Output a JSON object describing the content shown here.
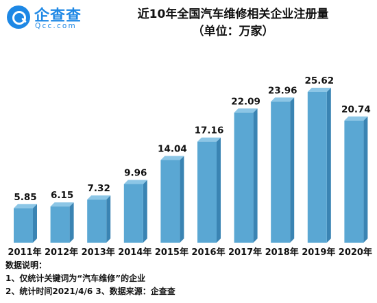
{
  "logo": {
    "name": "企查查",
    "domain": "Qcc.com"
  },
  "chart_data": {
    "type": "bar",
    "title": "近10年全国汽车维修相关企业注册量",
    "subtitle": "（单位：万家）",
    "categories": [
      "2011年",
      "2012年",
      "2013年",
      "2014年",
      "2015年",
      "2016年",
      "2017年",
      "2018年",
      "2019年",
      "2020年"
    ],
    "values": [
      5.85,
      6.15,
      7.32,
      9.96,
      14.04,
      17.16,
      22.09,
      23.96,
      25.62,
      20.74
    ],
    "data_labels": [
      "5.85",
      "6.15",
      "7.32",
      "9.96",
      "14.04",
      "17.16",
      "22.09",
      "23.96",
      "25.62",
      "20.74"
    ],
    "ylim": [
      0,
      25.62
    ],
    "grid": false,
    "colors": {
      "front": "#5aa7d3",
      "side": "#3a84b3",
      "top": "#8cc6e6"
    }
  },
  "notes": {
    "heading": "数据说明：",
    "line1": "1、仅统计关键词为“汽车维修”的企业",
    "line2": "2、统计时间2021/4/6   3、数据来源：企查查"
  }
}
